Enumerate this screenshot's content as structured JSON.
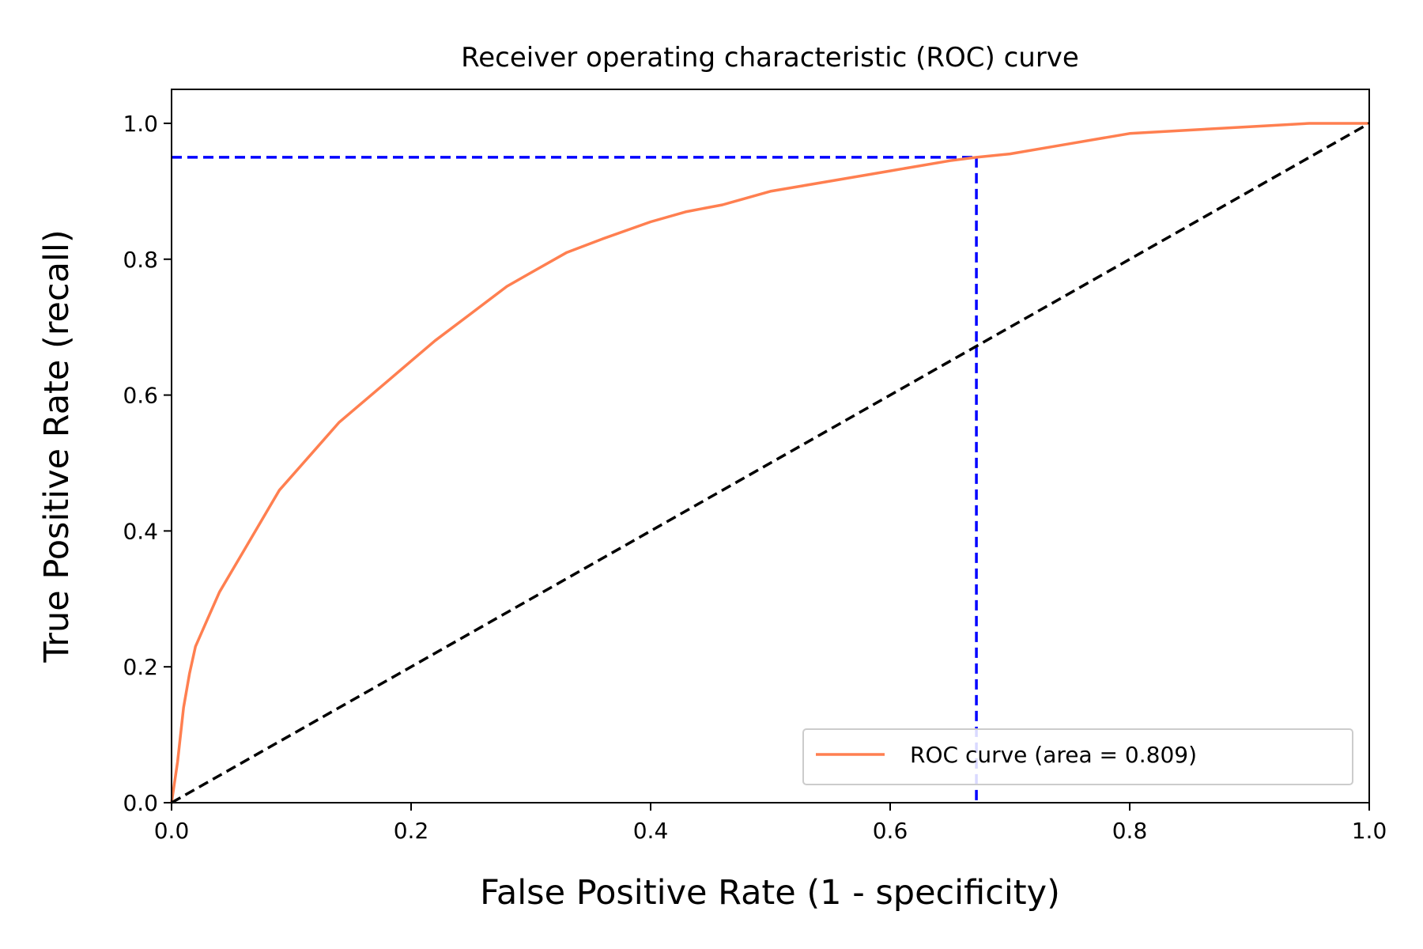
{
  "chart_data": {
    "type": "line",
    "title": "Receiver operating characteristic (ROC) curve",
    "xlabel": "False Positive Rate (1 - specificity)",
    "ylabel": "True Positive Rate (recall)",
    "xlim": [
      0.0,
      1.0
    ],
    "ylim": [
      0.0,
      1.05
    ],
    "xticks": [
      "0.0",
      "0.2",
      "0.4",
      "0.6",
      "0.8",
      "1.0"
    ],
    "yticks": [
      "0.0",
      "0.2",
      "0.4",
      "0.6",
      "0.8",
      "1.0"
    ],
    "grid": false,
    "legend_position": "lower-right",
    "series": [
      {
        "name": "ROC curve (area = 0.809)",
        "color": "#ff7f50",
        "style": "solid",
        "x": [
          0.0,
          0.005,
          0.01,
          0.015,
          0.02,
          0.03,
          0.04,
          0.05,
          0.06,
          0.07,
          0.08,
          0.09,
          0.1,
          0.12,
          0.14,
          0.16,
          0.18,
          0.2,
          0.22,
          0.25,
          0.28,
          0.3,
          0.33,
          0.36,
          0.4,
          0.43,
          0.46,
          0.5,
          0.55,
          0.6,
          0.65,
          0.672,
          0.7,
          0.75,
          0.8,
          0.85,
          0.9,
          0.95,
          1.0
        ],
        "y": [
          0.0,
          0.06,
          0.14,
          0.19,
          0.23,
          0.27,
          0.31,
          0.34,
          0.37,
          0.4,
          0.43,
          0.46,
          0.48,
          0.52,
          0.56,
          0.59,
          0.62,
          0.65,
          0.68,
          0.72,
          0.76,
          0.78,
          0.81,
          0.83,
          0.855,
          0.87,
          0.88,
          0.9,
          0.915,
          0.93,
          0.945,
          0.95,
          0.955,
          0.97,
          0.985,
          0.99,
          0.995,
          1.0,
          1.0
        ]
      },
      {
        "color": "#000000",
        "style": "dashed",
        "x": [
          0.0,
          1.0
        ],
        "y": [
          0.0,
          1.0
        ]
      }
    ],
    "reference_lines": {
      "color": "#0000ff",
      "style": "dashed",
      "x": 0.672,
      "y": 0.95
    }
  }
}
